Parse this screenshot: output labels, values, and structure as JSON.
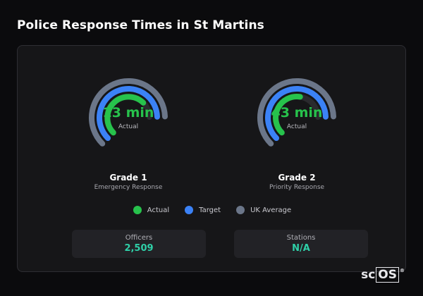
{
  "page": {
    "title": "Police Response Times in St Martins"
  },
  "colors": {
    "actual": "#27c24c",
    "target": "#3b82f6",
    "uk_average": "#6b7689",
    "track": "#2a2a2e"
  },
  "gauges": [
    {
      "value": "13 min",
      "sublabel": "Actual",
      "name": "Grade 1",
      "description": "Emergency Response",
      "actual_fraction": 0.5,
      "target_fraction": 0.62,
      "uk_fraction": 0.62
    },
    {
      "value": "43 min",
      "sublabel": "Actual",
      "name": "Grade 2",
      "description": "Priority Response",
      "actual_fraction": 0.4,
      "target_fraction": 0.62,
      "uk_fraction": 0.62
    }
  ],
  "legend": [
    {
      "label": "Actual",
      "icon": "green-dot-icon"
    },
    {
      "label": "Target",
      "icon": "blue-dot-icon"
    },
    {
      "label": "UK Average",
      "icon": "grey-dot-icon"
    }
  ],
  "stats": [
    {
      "label": "Officers",
      "value": "2,509"
    },
    {
      "label": "Stations",
      "value": "N/A"
    }
  ],
  "brand": {
    "prefix": "sc",
    "boxed": "OS",
    "mark": "®"
  }
}
